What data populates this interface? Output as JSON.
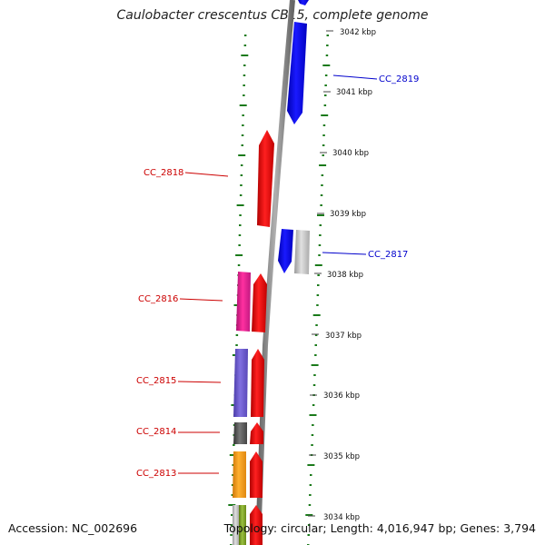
{
  "title": "Caulobacter crescentus CB15, complete genome",
  "footer": {
    "accession": "Accession: NC_002696",
    "summary": "Topology: circular; Length: 4,016,947 bp; Genes: 3,794"
  },
  "ticks": [
    {
      "label": "3042 kbp"
    },
    {
      "label": "3041 kbp"
    },
    {
      "label": "3040 kbp"
    },
    {
      "label": "3039 kbp"
    },
    {
      "label": "3038 kbp"
    },
    {
      "label": "3037 kbp"
    },
    {
      "label": "3036 kbp"
    },
    {
      "label": "3035 kbp"
    },
    {
      "label": "3034 kbp"
    }
  ],
  "gene_labels": [
    {
      "name": "CC_2819",
      "color": "#0000cc"
    },
    {
      "name": "CC_2818",
      "color": "#cc0000"
    },
    {
      "name": "CC_2817",
      "color": "#0000cc"
    },
    {
      "name": "CC_2816",
      "color": "#cc0000"
    },
    {
      "name": "CC_2815",
      "color": "#cc0000"
    },
    {
      "name": "CC_2814",
      "color": "#cc0000"
    },
    {
      "name": "CC_2813",
      "color": "#cc0000"
    }
  ],
  "colors": {
    "forward_gene": "#ee0000",
    "reverse_gene": "#0000ff",
    "backbone": "#808080",
    "gc_dots": "#1a7a1a",
    "magenta_cog": "#e0208f",
    "purple_cog": "#6a5acd",
    "dark_gray_cog": "#555555",
    "orange_cog": "#f5a018",
    "light_gray_cog": "#c0c0c0",
    "olive_cog": "#7aa020"
  }
}
